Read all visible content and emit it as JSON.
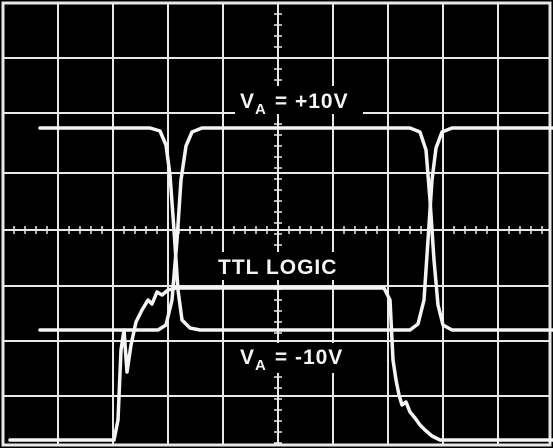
{
  "labels": {
    "top": {
      "symbol": "V",
      "subscript": "A",
      "value": "= +10V"
    },
    "middle": "TTL LOGIC",
    "bottom": {
      "symbol": "V",
      "subscript": "A",
      "value": "= -10V"
    }
  }
}
